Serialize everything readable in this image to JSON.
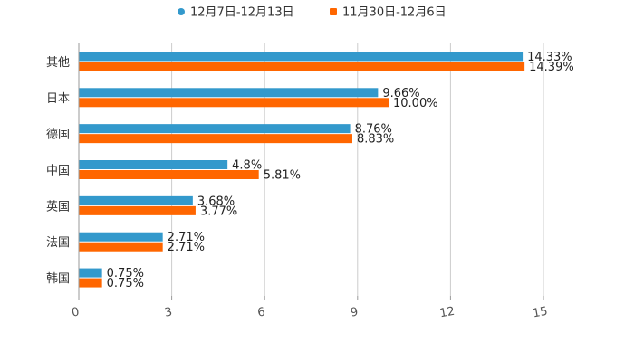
{
  "chart_data": {
    "type": "bar",
    "orientation": "horizontal",
    "title": "",
    "xlabel": "",
    "ylabel": "",
    "xlim": [
      0,
      15
    ],
    "ticks": [
      "0",
      "3",
      "6",
      "9",
      "12",
      "15"
    ],
    "tick_values": [
      0,
      3,
      6,
      9,
      12,
      15
    ],
    "grid": true,
    "legend_position": "top-center",
    "categories": [
      "其他",
      "日本",
      "德国",
      "中国",
      "英国",
      "法国",
      "韩国"
    ],
    "series": [
      {
        "name": "12月7日-12月13日",
        "color": "#3399cc",
        "values": [
          14.33,
          9.66,
          8.76,
          4.8,
          3.68,
          2.71,
          0.75
        ],
        "labels": [
          "14.33%",
          "9.66%",
          "8.76%",
          "4.8%",
          "3.68%",
          "2.71%",
          "0.75%"
        ]
      },
      {
        "name": "11月30日-12月6日",
        "color": "#ff6600",
        "values": [
          14.39,
          10.0,
          8.83,
          5.81,
          3.77,
          2.71,
          0.75
        ],
        "labels": [
          "14.39%",
          "10.00%",
          "8.83%",
          "5.81%",
          "3.77%",
          "2.71%",
          "0.75%"
        ]
      }
    ]
  }
}
